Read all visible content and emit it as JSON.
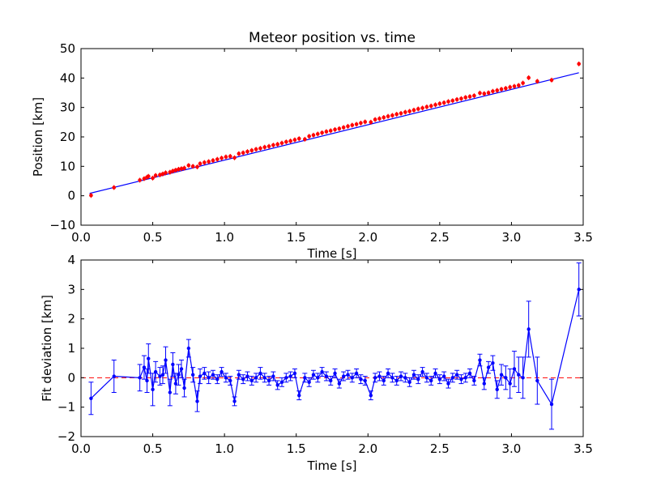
{
  "chart_data": [
    {
      "type": "scatter",
      "title": "Meteor position vs. time",
      "xlabel": "Time [s]",
      "ylabel": "Position [km]",
      "xlim": [
        0.0,
        3.5
      ],
      "ylim": [
        -10,
        50
      ],
      "xticks": [
        "0.0",
        "0.5",
        "1.0",
        "1.5",
        "2.0",
        "2.5",
        "3.0",
        "3.5"
      ],
      "xtick_values": [
        0,
        0.5,
        1.0,
        1.5,
        2.0,
        2.5,
        3.0,
        3.5
      ],
      "yticks": [
        "−10",
        "0",
        "10",
        "20",
        "30",
        "40",
        "50"
      ],
      "ytick_values": [
        -10,
        0,
        10,
        20,
        30,
        40,
        50
      ],
      "grid": false,
      "legend": "none",
      "colors": {
        "points": "#ff0000",
        "fit": "#0000ff"
      },
      "fit_line": {
        "x": [
          0.06,
          3.47
        ],
        "y": [
          0.8,
          41.8
        ]
      },
      "series": [
        {
          "x": [
            0.07,
            0.23,
            0.41,
            0.44,
            0.46,
            0.47,
            0.5,
            0.52,
            0.55,
            0.57,
            0.59,
            0.62,
            0.64,
            0.66,
            0.68,
            0.7,
            0.72,
            0.75,
            0.78,
            0.81,
            0.83,
            0.86,
            0.89,
            0.92,
            0.95,
            0.98,
            1.01,
            1.04,
            1.07,
            1.1,
            1.13,
            1.16,
            1.19,
            1.22,
            1.25,
            1.28,
            1.31,
            1.34,
            1.37,
            1.4,
            1.43,
            1.46,
            1.49,
            1.52,
            1.56,
            1.59,
            1.62,
            1.65,
            1.68,
            1.71,
            1.74,
            1.77,
            1.8,
            1.83,
            1.86,
            1.89,
            1.92,
            1.95,
            1.98,
            2.02,
            2.05,
            2.08,
            2.11,
            2.14,
            2.17,
            2.2,
            2.23,
            2.26,
            2.29,
            2.32,
            2.35,
            2.38,
            2.41,
            2.44,
            2.47,
            2.5,
            2.53,
            2.56,
            2.59,
            2.62,
            2.65,
            2.68,
            2.71,
            2.74,
            2.78,
            2.81,
            2.84,
            2.87,
            2.9,
            2.93,
            2.96,
            2.99,
            3.02,
            3.05,
            3.08,
            3.12,
            3.18,
            3.28,
            3.47
          ],
          "y": [
            0.1,
            2.8,
            5.3,
            5.8,
            6.3,
            6.6,
            6.0,
            6.9,
            7.1,
            7.4,
            7.8,
            8.0,
            8.4,
            8.7,
            9.0,
            9.2,
            9.4,
            10.3,
            10.0,
            9.8,
            10.9,
            11.3,
            11.6,
            12.0,
            12.4,
            12.8,
            13.2,
            13.4,
            12.9,
            14.3,
            14.6,
            15.0,
            15.4,
            15.8,
            16.1,
            16.5,
            16.8,
            17.2,
            17.5,
            17.9,
            18.3,
            18.6,
            19.0,
            19.4,
            19.2,
            20.2,
            20.6,
            21.0,
            21.4,
            21.8,
            22.1,
            22.5,
            22.8,
            23.2,
            23.6,
            24.0,
            24.3,
            24.7,
            25.1,
            25.0,
            25.9,
            26.2,
            26.6,
            27.0,
            27.3,
            27.7,
            28.0,
            28.4,
            28.7,
            29.1,
            29.5,
            29.8,
            30.2,
            30.5,
            30.9,
            31.3,
            31.6,
            32.0,
            32.3,
            32.7,
            33.0,
            33.4,
            33.7,
            34.0,
            34.9,
            34.7,
            35.0,
            35.5,
            35.8,
            36.2,
            36.5,
            36.9,
            37.2,
            37.5,
            38.3,
            40.1,
            38.9,
            39.3,
            44.8
          ]
        }
      ]
    },
    {
      "type": "line",
      "xlabel": "Time [s]",
      "ylabel": "Fit deviation [km]",
      "xlim": [
        0.0,
        3.5
      ],
      "ylim": [
        -2,
        4
      ],
      "xticks": [
        "0.0",
        "0.5",
        "1.0",
        "1.5",
        "2.0",
        "2.5",
        "3.0",
        "3.5"
      ],
      "xtick_values": [
        0,
        0.5,
        1.0,
        1.5,
        2.0,
        2.5,
        3.0,
        3.5
      ],
      "yticks": [
        "−2",
        "−1",
        "0",
        "1",
        "2",
        "3",
        "4"
      ],
      "ytick_values": [
        -2,
        -1,
        0,
        1,
        2,
        3,
        4
      ],
      "grid": false,
      "legend": "none",
      "colors": {
        "series": "#0000ff",
        "zero_line": "#ff0000"
      },
      "reference_line": {
        "y": 0,
        "style": "dashed"
      },
      "series": [
        {
          "x": [
            0.07,
            0.23,
            0.41,
            0.44,
            0.46,
            0.47,
            0.5,
            0.52,
            0.55,
            0.57,
            0.59,
            0.62,
            0.64,
            0.66,
            0.68,
            0.7,
            0.72,
            0.75,
            0.78,
            0.81,
            0.83,
            0.86,
            0.89,
            0.92,
            0.95,
            0.98,
            1.01,
            1.04,
            1.07,
            1.1,
            1.13,
            1.16,
            1.19,
            1.22,
            1.25,
            1.28,
            1.31,
            1.34,
            1.37,
            1.4,
            1.43,
            1.46,
            1.49,
            1.52,
            1.56,
            1.59,
            1.62,
            1.65,
            1.68,
            1.71,
            1.74,
            1.77,
            1.8,
            1.83,
            1.86,
            1.89,
            1.92,
            1.95,
            1.98,
            2.02,
            2.05,
            2.08,
            2.11,
            2.14,
            2.17,
            2.2,
            2.23,
            2.26,
            2.29,
            2.32,
            2.35,
            2.38,
            2.41,
            2.44,
            2.47,
            2.5,
            2.53,
            2.56,
            2.59,
            2.62,
            2.65,
            2.68,
            2.71,
            2.74,
            2.78,
            2.81,
            2.84,
            2.87,
            2.9,
            2.93,
            2.96,
            2.99,
            3.02,
            3.05,
            3.08,
            3.12,
            3.18,
            3.28,
            3.47
          ],
          "y": [
            -0.7,
            0.05,
            0.0,
            0.35,
            -0.1,
            0.65,
            -0.4,
            0.2,
            0.05,
            0.1,
            0.6,
            -0.5,
            0.45,
            -0.2,
            0.1,
            0.3,
            -0.35,
            1.0,
            0.1,
            -0.8,
            0.05,
            0.15,
            0.0,
            0.1,
            -0.05,
            0.2,
            0.0,
            -0.1,
            -0.8,
            0.1,
            -0.05,
            0.05,
            -0.1,
            0.0,
            0.15,
            0.0,
            -0.1,
            0.05,
            -0.25,
            -0.15,
            0.0,
            0.05,
            0.15,
            -0.6,
            0.0,
            -0.15,
            0.1,
            0.0,
            0.2,
            0.05,
            -0.1,
            0.15,
            -0.2,
            0.05,
            0.1,
            0.0,
            0.15,
            -0.05,
            -0.1,
            -0.6,
            0.0,
            0.05,
            -0.1,
            0.15,
            0.0,
            -0.1,
            0.05,
            0.0,
            -0.15,
            0.1,
            -0.05,
            0.2,
            0.0,
            -0.1,
            0.15,
            -0.05,
            0.05,
            -0.2,
            0.0,
            0.1,
            -0.05,
            0.0,
            0.15,
            -0.1,
            0.6,
            -0.2,
            0.35,
            0.5,
            -0.4,
            0.1,
            0.0,
            -0.2,
            0.3,
            0.1,
            0.0,
            1.65,
            -0.1,
            -0.9,
            3.0
          ],
          "err": [
            0.55,
            0.55,
            0.45,
            0.4,
            0.4,
            0.5,
            0.55,
            0.35,
            0.3,
            0.3,
            0.45,
            0.45,
            0.4,
            0.35,
            0.35,
            0.3,
            0.3,
            0.3,
            0.25,
            0.35,
            0.25,
            0.2,
            0.2,
            0.15,
            0.15,
            0.15,
            0.15,
            0.15,
            0.15,
            0.15,
            0.15,
            0.15,
            0.15,
            0.15,
            0.2,
            0.15,
            0.15,
            0.15,
            0.15,
            0.15,
            0.15,
            0.15,
            0.15,
            0.15,
            0.15,
            0.15,
            0.15,
            0.15,
            0.15,
            0.15,
            0.15,
            0.15,
            0.15,
            0.15,
            0.15,
            0.15,
            0.15,
            0.15,
            0.15,
            0.15,
            0.15,
            0.15,
            0.15,
            0.15,
            0.15,
            0.15,
            0.15,
            0.15,
            0.15,
            0.15,
            0.15,
            0.15,
            0.15,
            0.15,
            0.15,
            0.15,
            0.15,
            0.15,
            0.15,
            0.15,
            0.15,
            0.15,
            0.15,
            0.15,
            0.2,
            0.2,
            0.2,
            0.25,
            0.3,
            0.35,
            0.4,
            0.5,
            0.6,
            0.6,
            0.7,
            0.95,
            0.8,
            0.85,
            0.9
          ]
        }
      ]
    }
  ]
}
